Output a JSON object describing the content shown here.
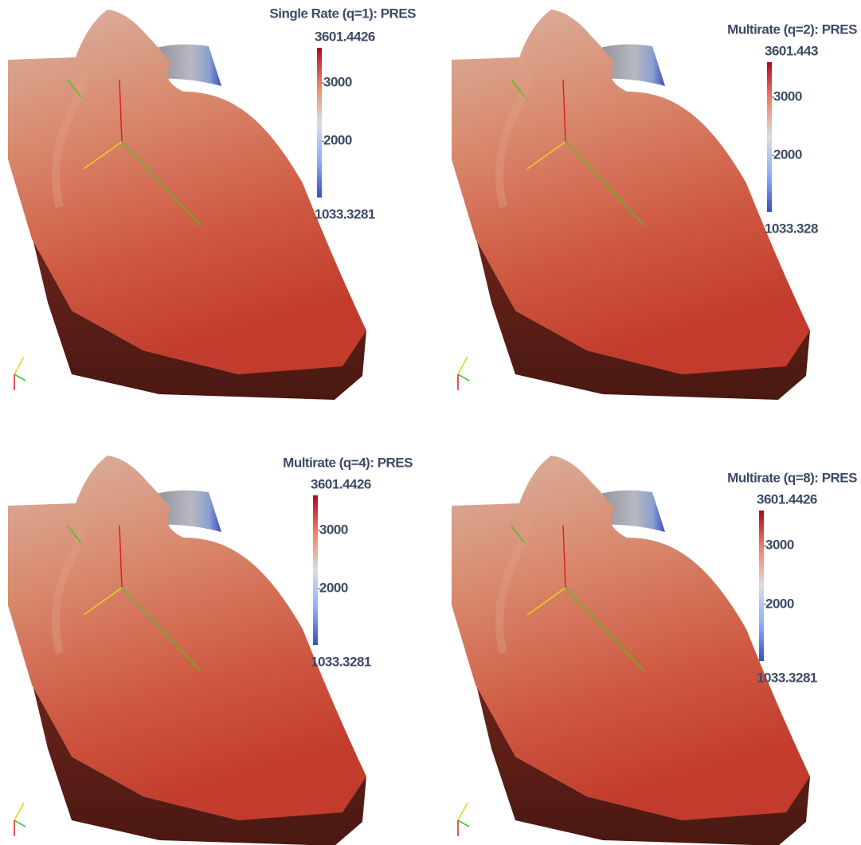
{
  "panels": [
    {
      "title": "Single Rate (q=1): PRES",
      "colorbar": {
        "max": 3601.4426,
        "min": 1033.3281,
        "ticks": [
          3000,
          2000
        ]
      }
    },
    {
      "title": "Multirate (q=2): PRES",
      "colorbar": {
        "max": 3601.443,
        "min": 1033.328,
        "ticks": [
          3000,
          2000
        ]
      }
    },
    {
      "title": "Multirate (q=4): PRES",
      "colorbar": {
        "max": 3601.4426,
        "min": 1033.3281,
        "ticks": [
          3000,
          2000
        ]
      }
    },
    {
      "title": "Multirate (q=8): PRES",
      "colorbar": {
        "max": 3601.4426,
        "min": 1033.3281,
        "ticks": [
          3000,
          2000
        ]
      }
    }
  ]
}
